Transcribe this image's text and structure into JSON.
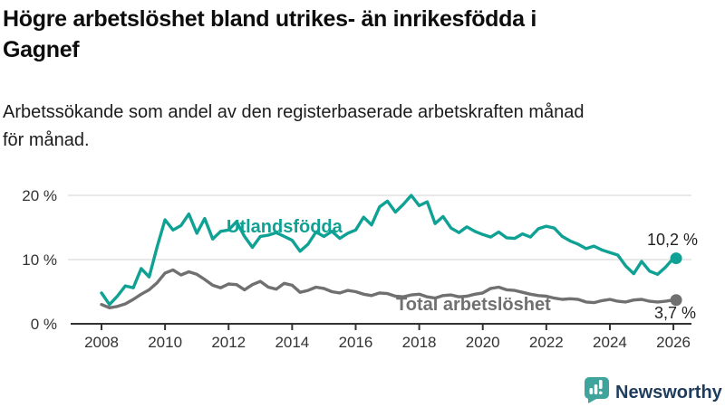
{
  "header": {
    "title": "Högre arbetslöshet bland utrikes- än inrikesfödda i Gagnef",
    "title_lines": [
      "Högre arbetslöshet bland utrikes- än inrikesfödda i",
      "Gagnef"
    ],
    "subtitle": "Arbetssökande som andel av den registerbaserade arbetskraften månad för månad.",
    "subtitle_lines": [
      "Arbetssökande som andel av den registerbaserade arbetskraften månad",
      "för månad."
    ]
  },
  "colors": {
    "accent_teal": "#0fa294",
    "line_gray": "#707070",
    "axis": "#333333",
    "grid": "#d9d9d9",
    "value_text": "#222222",
    "logo_teal": "#3fa49b",
    "logo_navy": "#1e3d5c"
  },
  "chart_data": {
    "type": "line",
    "title": "Högre arbetslöshet bland utrikes- än inrikesfödda i Gagnef",
    "xlabel": "",
    "ylabel": "",
    "grid": "horizontal",
    "legend_position": "inline-labels-on-lines",
    "xlim": [
      2007.8,
      2026.6
    ],
    "ylim": [
      0,
      21
    ],
    "x_ticks": [
      2008,
      2010,
      2012,
      2014,
      2016,
      2018,
      2020,
      2022,
      2024,
      2026
    ],
    "x_tick_labels": [
      "2008",
      "2010",
      "2012",
      "2014",
      "2016",
      "2018",
      "2020",
      "2022",
      "2024",
      "2026"
    ],
    "y_ticks": [
      0,
      10,
      20
    ],
    "y_tick_labels": [
      "0 %",
      "10 %",
      "20 %"
    ],
    "x": [
      2008,
      2008.25,
      2008.5,
      2008.75,
      2009,
      2009.25,
      2009.5,
      2009.75,
      2010,
      2010.25,
      2010.5,
      2010.75,
      2011,
      2011.25,
      2011.5,
      2011.75,
      2012,
      2012.25,
      2012.5,
      2012.75,
      2013,
      2013.25,
      2013.5,
      2013.75,
      2014,
      2014.25,
      2014.5,
      2014.75,
      2015,
      2015.25,
      2015.5,
      2015.75,
      2016,
      2016.25,
      2016.5,
      2016.75,
      2017,
      2017.25,
      2017.5,
      2017.75,
      2018,
      2018.25,
      2018.5,
      2018.75,
      2019,
      2019.25,
      2019.5,
      2019.75,
      2020,
      2020.25,
      2020.5,
      2020.75,
      2021,
      2021.25,
      2021.5,
      2021.75,
      2022,
      2022.25,
      2022.5,
      2022.75,
      2023,
      2023.25,
      2023.5,
      2023.75,
      2024,
      2024.25,
      2024.5,
      2024.75,
      2025,
      2025.25,
      2025.5,
      2025.75,
      2026
    ],
    "series": [
      {
        "name": "Utlandsfödda",
        "color": "#0fa294",
        "end_label": "10,2 %",
        "end_value": 10.2,
        "values": [
          4.8,
          3.0,
          4.3,
          5.9,
          5.6,
          8.6,
          7.3,
          12.0,
          16.2,
          14.6,
          15.3,
          17.1,
          14.1,
          16.4,
          13.2,
          14.4,
          14.6,
          15.9,
          13.6,
          11.9,
          13.6,
          13.8,
          14.2,
          13.6,
          13.0,
          11.3,
          12.4,
          14.3,
          13.6,
          14.4,
          13.3,
          14.1,
          14.6,
          16.6,
          15.4,
          18.2,
          19.1,
          17.4,
          18.6,
          20.0,
          18.4,
          19.0,
          15.6,
          16.7,
          14.9,
          14.2,
          15.1,
          14.4,
          13.9,
          13.5,
          14.3,
          13.4,
          13.3,
          14.0,
          13.5,
          14.8,
          15.2,
          14.9,
          13.6,
          12.9,
          12.4,
          11.7,
          12.1,
          11.5,
          11.1,
          10.7,
          9.0,
          7.8,
          9.7,
          8.2,
          7.7,
          8.8,
          10.2
        ]
      },
      {
        "name": "Total arbetslöshet",
        "color": "#707070",
        "end_label": "3,7 %",
        "end_value": 3.7,
        "values": [
          3.0,
          2.5,
          2.7,
          3.1,
          3.8,
          4.6,
          5.3,
          6.4,
          7.9,
          8.4,
          7.6,
          8.1,
          7.7,
          6.9,
          6.0,
          5.6,
          6.2,
          6.1,
          5.3,
          6.1,
          6.6,
          5.7,
          5.4,
          6.3,
          6.0,
          4.9,
          5.2,
          5.7,
          5.5,
          5.0,
          4.8,
          5.2,
          5.0,
          4.6,
          4.4,
          4.8,
          4.7,
          4.3,
          4.2,
          4.5,
          4.6,
          4.2,
          4.0,
          4.4,
          4.5,
          4.2,
          4.3,
          4.6,
          4.8,
          5.5,
          5.7,
          5.3,
          5.2,
          4.9,
          4.6,
          4.4,
          4.3,
          4.0,
          3.8,
          3.9,
          3.8,
          3.4,
          3.3,
          3.6,
          3.8,
          3.5,
          3.4,
          3.7,
          3.8,
          3.5,
          3.4,
          3.5,
          3.7
        ]
      }
    ]
  },
  "branding": {
    "wordmark": "Newsworthy",
    "logo_icon": "bar-chart-speech-bubble-icon"
  }
}
